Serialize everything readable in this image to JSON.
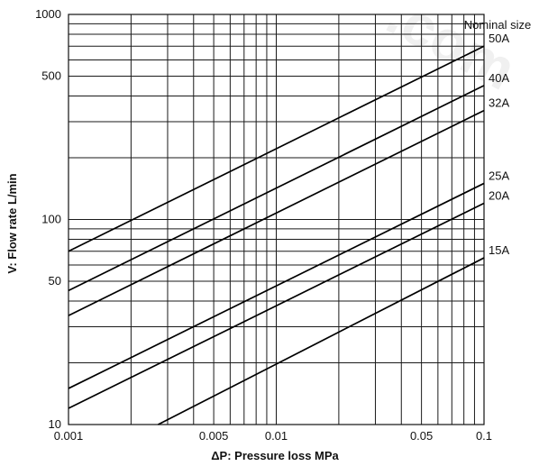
{
  "watermark": ".com",
  "chart_data": {
    "type": "line",
    "title": "",
    "xlabel": "ΔP: Pressure loss MPa",
    "ylabel": "V: Flow rate L/min",
    "xscale": "log",
    "yscale": "log",
    "xlim": [
      0.001,
      0.1
    ],
    "ylim": [
      10,
      1000
    ],
    "x_tick_labels": [
      {
        "value": 0.001,
        "label": "0.001"
      },
      {
        "value": 0.005,
        "label": "0.005"
      },
      {
        "value": 0.01,
        "label": "0.01"
      },
      {
        "value": 0.05,
        "label": "0.05"
      },
      {
        "value": 0.1,
        "label": "0.1"
      }
    ],
    "y_tick_labels": [
      {
        "value": 10,
        "label": "10"
      },
      {
        "value": 50,
        "label": "50"
      },
      {
        "value": 100,
        "label": "100"
      },
      {
        "value": 500,
        "label": "500"
      },
      {
        "value": 1000,
        "label": "1000"
      }
    ],
    "grid": true,
    "legend_title": "Nominal size",
    "series": [
      {
        "name": "50A",
        "x": [
          0.001,
          0.1
        ],
        "y": [
          70,
          700
        ]
      },
      {
        "name": "40A",
        "x": [
          0.001,
          0.1
        ],
        "y": [
          45,
          450
        ]
      },
      {
        "name": "32A",
        "x": [
          0.001,
          0.1
        ],
        "y": [
          34,
          340
        ]
      },
      {
        "name": "25A",
        "x": [
          0.001,
          0.1
        ],
        "y": [
          15,
          150
        ]
      },
      {
        "name": "20A",
        "x": [
          0.001,
          0.1
        ],
        "y": [
          12,
          120
        ]
      },
      {
        "name": "15A",
        "x": [
          0.0027,
          0.1
        ],
        "y": [
          10,
          65
        ]
      }
    ]
  }
}
